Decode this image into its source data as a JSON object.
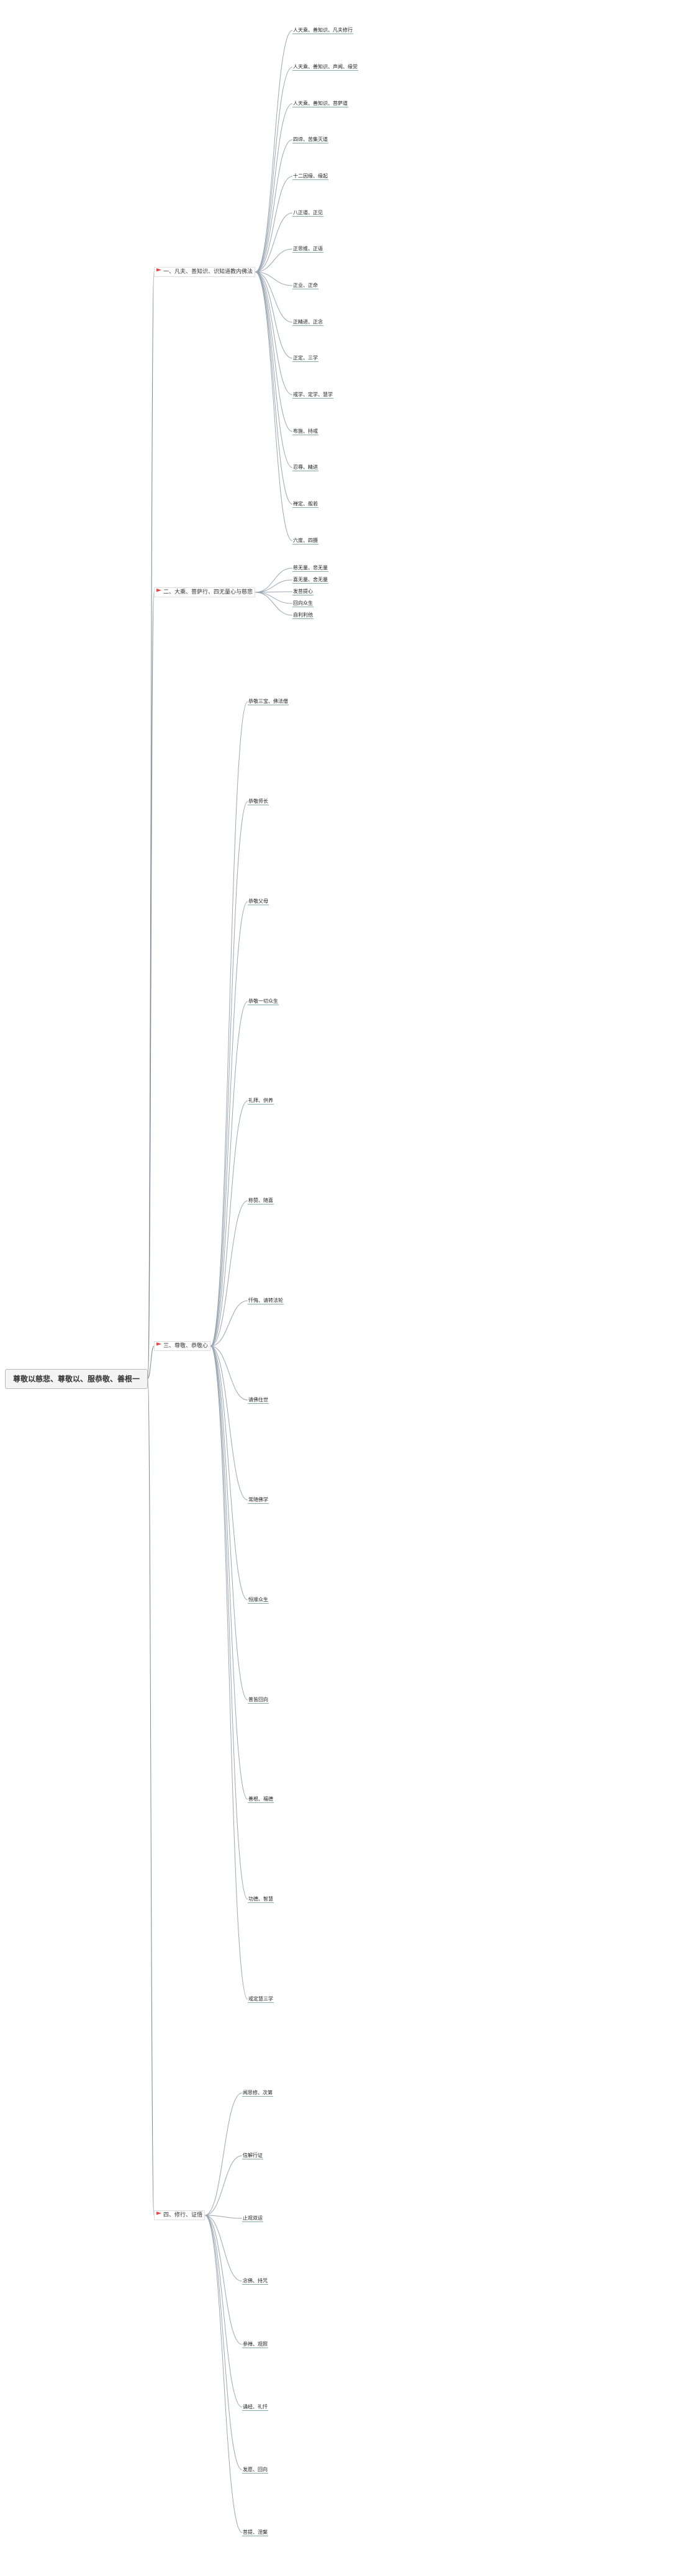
{
  "root": {
    "label": "尊敬以慈悲、尊敬以、服恭敬、善根一"
  },
  "branches": [
    {
      "label": "一、凡夫、善知识、识知道教内佛法",
      "icon": "flag-icon",
      "children": [
        "人天乘、善知识、凡夫修行",
        "人天乘、善知识、声闻、缘觉",
        "人天乘、善知识、菩萨道",
        "四谛、苦集灭道",
        "十二因缘、缘起",
        "八正道、正见",
        "正思维、正语",
        "正业、正命",
        "正精进、正念",
        "正定、三学",
        "戒学、定学、慧学",
        "布施、持戒",
        "忍辱、精进",
        "禅定、般若",
        "六度、四摄"
      ]
    },
    {
      "label": "二、大乘、菩萨行、四无量心与慈悲",
      "icon": "flag-icon",
      "children": [
        "慈无量、悲无量",
        "喜无量、舍无量",
        "发菩提心",
        "回向众生",
        "自利利他"
      ]
    },
    {
      "label": "三、尊敬、恭敬心",
      "icon": "flag-icon",
      "children": [
        "恭敬三宝、佛法僧",
        "恭敬师长",
        "恭敬父母",
        "恭敬一切众生",
        "礼拜、供养",
        "称赞、随喜",
        "忏悔、请转法轮",
        "请佛住世",
        "常随佛学",
        "恒顺众生",
        "普皆回向",
        "善根、福德",
        "功德、智慧",
        "戒定慧三学"
      ]
    },
    {
      "label": "四、修行、证悟",
      "icon": "flag-icon",
      "children": [
        "闻思修、次第",
        "信解行证",
        "止观双运",
        "念佛、持咒",
        "参禅、观照",
        "诵经、礼忏",
        "发愿、回向",
        "菩提、涅槃"
      ]
    }
  ]
}
